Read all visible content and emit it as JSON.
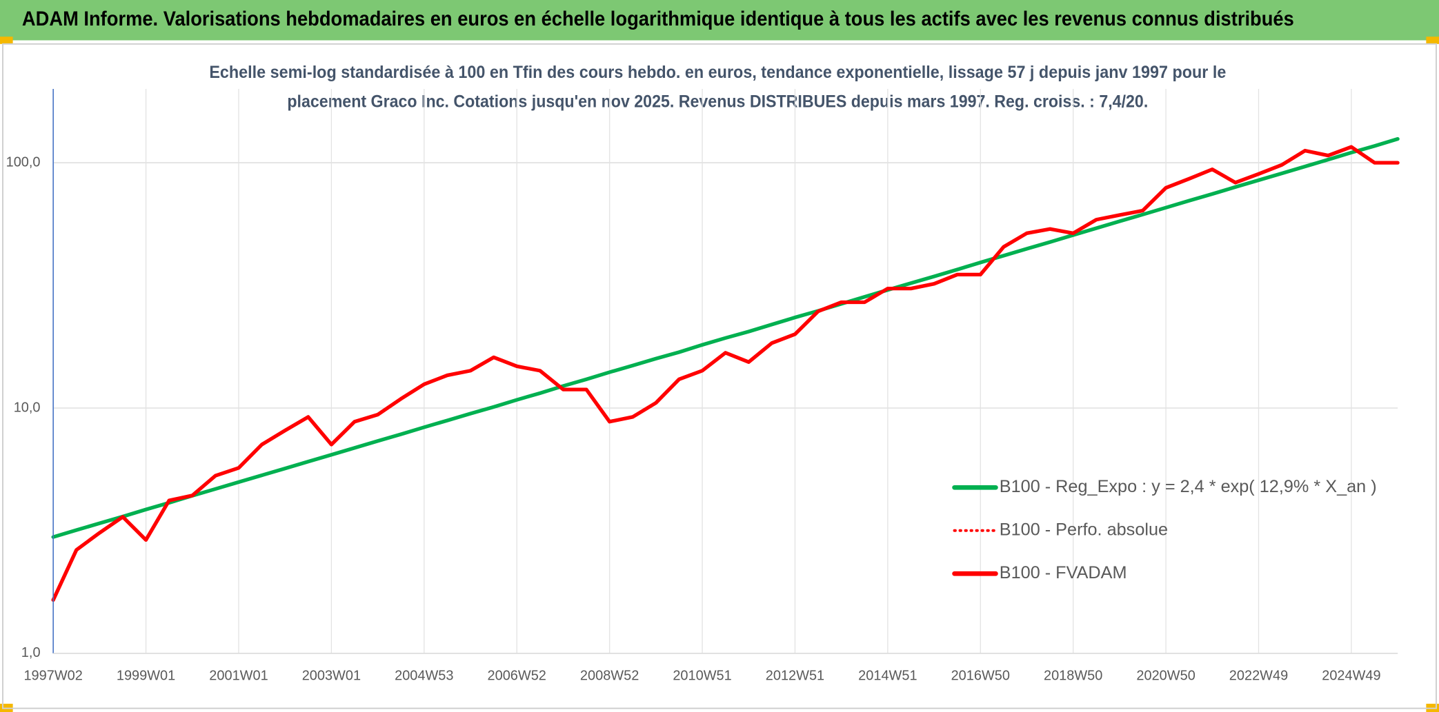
{
  "chart_data": {
    "type": "line",
    "title": "ADAM Informe. Valorisations hebdomadaires en euros en échelle logarithmique identique à tous les actifs avec les revenus connus distribués",
    "subtitle": [
      "Echelle semi-log standardisée à 100 en Tfin des cours hebdo. en euros, tendance exponentielle, lissage 57 j depuis janv 1997 pour le",
      "placement Graco Inc. Cotations jusqu'en nov 2025. Revenus DISTRIBUES depuis mars 1997. Reg. croiss. : 7,4/20."
    ],
    "categories": [
      "1997W02",
      null,
      null,
      null,
      "1999W01",
      null,
      null,
      null,
      "2001W01",
      null,
      null,
      null,
      "2003W01",
      null,
      null,
      null,
      "2004W53",
      null,
      null,
      null,
      "2006W52",
      null,
      null,
      null,
      "2008W52",
      null,
      null,
      null,
      "2010W51",
      null,
      null,
      null,
      "2012W51",
      null,
      null,
      null,
      "2014W51",
      null,
      null,
      null,
      "2016W50",
      null,
      null,
      null,
      "2018W50",
      null,
      null,
      null,
      "2020W50",
      null,
      null,
      null,
      "2022W49",
      null,
      null,
      null,
      "2024W49",
      null,
      null
    ],
    "series": [
      {
        "name": "B100 - Reg_Expo : y = 2,4 * exp( 12,9% *  X_an )",
        "color": "#00b050",
        "style": "solid",
        "values": [
          2.98,
          3.18,
          3.39,
          3.61,
          3.86,
          4.11,
          4.39,
          4.68,
          4.99,
          5.32,
          5.67,
          6.05,
          6.45,
          6.88,
          7.34,
          7.82,
          8.35,
          8.9,
          9.49,
          10.1,
          10.8,
          11.5,
          12.3,
          13.1,
          14.0,
          14.9,
          15.9,
          16.9,
          18.1,
          19.3,
          20.5,
          21.9,
          23.4,
          24.9,
          26.6,
          28.4,
          30.3,
          32.3,
          34.4,
          36.7,
          39.2,
          41.8,
          44.6,
          47.5,
          50.7,
          54.1,
          57.7,
          61.5,
          65.6,
          70.0,
          74.6,
          79.6,
          84.9,
          90.5,
          96.5,
          103,
          110,
          117,
          125
        ]
      },
      {
        "name": "B100 - Perfo. absolue",
        "color": "#ff0000",
        "style": "dotted",
        "values": [
          1.65,
          2.64,
          3.1,
          3.6,
          2.9,
          4.2,
          4.4,
          5.3,
          5.7,
          7.1,
          8.1,
          9.2,
          7.1,
          8.8,
          9.4,
          10.9,
          12.5,
          13.6,
          14.2,
          16.1,
          14.8,
          14.2,
          11.9,
          11.9,
          8.8,
          9.2,
          10.5,
          13.1,
          14.2,
          16.8,
          15.4,
          18.4,
          20.0,
          24.8,
          27.0,
          27.0,
          30.7,
          30.7,
          32.1,
          35.0,
          35.0,
          45.4,
          51.6,
          53.7,
          51.6,
          58.6,
          61.2,
          63.8,
          79,
          86,
          94,
          83,
          90,
          98,
          112,
          107,
          116,
          100,
          100
        ]
      },
      {
        "name": "B100 - FVADAM",
        "color": "#ff0000",
        "style": "solid",
        "values": [
          1.65,
          2.64,
          3.1,
          3.6,
          2.9,
          4.2,
          4.4,
          5.3,
          5.7,
          7.1,
          8.1,
          9.2,
          7.1,
          8.8,
          9.4,
          10.9,
          12.5,
          13.6,
          14.2,
          16.1,
          14.8,
          14.2,
          11.9,
          11.9,
          8.8,
          9.2,
          10.5,
          13.1,
          14.2,
          16.8,
          15.4,
          18.4,
          20.0,
          24.8,
          27.0,
          27.0,
          30.7,
          30.7,
          32.1,
          35.0,
          35.0,
          45.4,
          51.6,
          53.7,
          51.6,
          58.6,
          61.2,
          63.8,
          79,
          86,
          94,
          83,
          90,
          98,
          112,
          107,
          116,
          100,
          100
        ]
      }
    ],
    "ylim": [
      1,
      200
    ],
    "yticks": [
      {
        "value": 1,
        "label": "1,0"
      },
      {
        "value": 10,
        "label": "10,0"
      },
      {
        "value": 100,
        "label": "100,0"
      }
    ],
    "log_scale": true,
    "grid": true,
    "legend": "lower-right"
  }
}
